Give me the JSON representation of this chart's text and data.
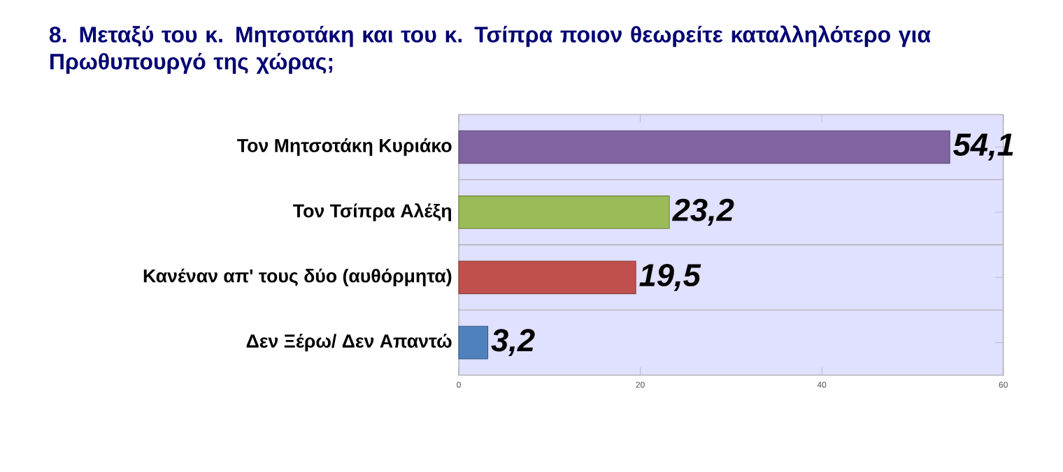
{
  "chart_data": {
    "type": "bar",
    "orientation": "horizontal",
    "title": "8. Μεταξύ του κ. Μητσοτάκη και του κ. Τσίπρα ποιον θεωρείτε καταλληλότερο για Πρωθυπουργό της χώρας;",
    "categories": [
      "Τον Μητσοτάκη Κυριάκο",
      "Τον Τσίπρα Αλέξη",
      "Κανέναν απ' τους δύο (αυθόρμητα)",
      "Δεν Ξέρω/ Δεν Απαντώ"
    ],
    "values": [
      54.1,
      23.2,
      19.5,
      3.2
    ],
    "value_labels": [
      "54,1",
      "23,2",
      "19,5",
      "3,2"
    ],
    "colors": [
      "#8064a2",
      "#9bbb59",
      "#c0504d",
      "#4f81bd"
    ],
    "xlim": [
      0,
      60
    ],
    "xticks": [
      0,
      20,
      40,
      60
    ]
  }
}
